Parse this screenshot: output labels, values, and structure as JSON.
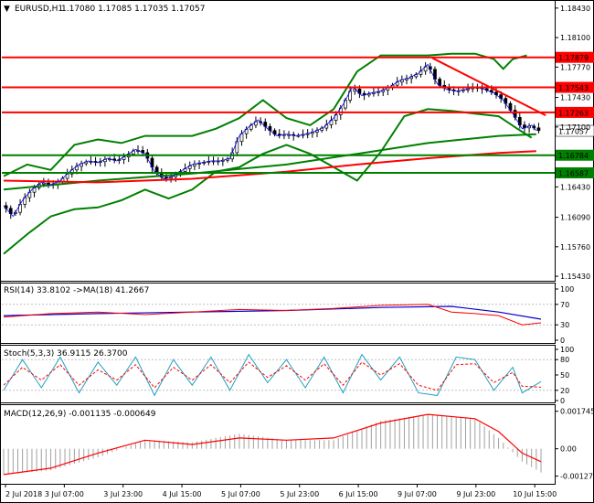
{
  "chart_title": {
    "symbol": "EURUSD,H1",
    "ohlc": "1.17080 1.17085 1.17035 1.17057",
    "marker": "▼"
  },
  "colors": {
    "bull": "#000000",
    "bear": "#000000",
    "level": "#ff0000",
    "support": "#008000",
    "bollinger": "#008000",
    "ma_slow": "#ff0000",
    "ma_mid": "#008000",
    "ma_fast_1": "#0000ff",
    "ma_fast_2": "#ff00ff",
    "rsi": "#ff0000",
    "rsi_ma": "#0000cc",
    "stoch_main": "#20a0c0",
    "stoch_signal": "#ff0000",
    "macd_hist": "#a0a0a0",
    "macd_signal": "#ff0000",
    "current_bg": "#ffffff",
    "grid": "#c0c0c0"
  },
  "chart_data": [
    {
      "type": "line",
      "title": "EURUSD,H1",
      "ylim": [
        1.154,
        1.185
      ],
      "y_ticks": [
        "1.18430",
        "1.18100",
        "1.17770",
        "1.17430",
        "1.17100",
        "1.16430",
        "1.16090",
        "1.15760",
        "1.15430"
      ],
      "x_ticks": [
        "2 Jul 2018",
        "3 Jul 07:00",
        "3 Jul 23:00",
        "4 Jul 15:00",
        "5 Jul 07:00",
        "5 Jul 23:00",
        "6 Jul 15:00",
        "9 Jul 07:00",
        "9 Jul 23:00",
        "10 Jul 15:00"
      ],
      "resistance_levels": [
        {
          "label": "1.17879",
          "value": 1.17879
        },
        {
          "label": "1.17543",
          "value": 1.17543
        },
        {
          "label": "1.17263",
          "value": 1.17263
        }
      ],
      "support_levels": [
        {
          "label": "1.16784",
          "value": 1.16784
        },
        {
          "label": "1.16587",
          "value": 1.16587
        }
      ],
      "current_price": {
        "label": "1.17057",
        "value": 1.17057
      },
      "price_path": [
        [
          0,
          1.1622
        ],
        [
          4,
          1.161
        ],
        [
          8,
          1.1628
        ],
        [
          12,
          1.164
        ],
        [
          16,
          1.1648
        ],
        [
          20,
          1.1645
        ],
        [
          24,
          1.165
        ],
        [
          28,
          1.166
        ],
        [
          32,
          1.1668
        ],
        [
          36,
          1.1672
        ],
        [
          40,
          1.167
        ],
        [
          44,
          1.1675
        ],
        [
          48,
          1.1672
        ],
        [
          52,
          1.1678
        ],
        [
          56,
          1.1685
        ],
        [
          60,
          1.168
        ],
        [
          64,
          1.166
        ],
        [
          68,
          1.1652
        ],
        [
          72,
          1.1655
        ],
        [
          76,
          1.1662
        ],
        [
          80,
          1.1668
        ],
        [
          84,
          1.167
        ],
        [
          88,
          1.1672
        ],
        [
          92,
          1.1672
        ],
        [
          96,
          1.1675
        ],
        [
          100,
          1.17
        ],
        [
          104,
          1.171
        ],
        [
          108,
          1.1718
        ],
        [
          112,
          1.1708
        ],
        [
          116,
          1.17
        ],
        [
          120,
          1.1702
        ],
        [
          124,
          1.17
        ],
        [
          128,
          1.1702
        ],
        [
          132,
          1.1705
        ],
        [
          136,
          1.171
        ],
        [
          140,
          1.172
        ],
        [
          144,
          1.1735
        ],
        [
          148,
          1.1755
        ],
        [
          152,
          1.1745
        ],
        [
          156,
          1.1748
        ],
        [
          160,
          1.175
        ],
        [
          164,
          1.1755
        ],
        [
          168,
          1.1762
        ],
        [
          172,
          1.1765
        ],
        [
          176,
          1.177
        ],
        [
          180,
          1.178
        ],
        [
          184,
          1.1758
        ],
        [
          188,
          1.1752
        ],
        [
          192,
          1.175
        ],
        [
          196,
          1.1752
        ],
        [
          200,
          1.1755
        ],
        [
          204,
          1.1752
        ],
        [
          208,
          1.1748
        ],
        [
          212,
          1.174
        ],
        [
          216,
          1.1725
        ],
        [
          220,
          1.1708
        ],
        [
          224,
          1.1712
        ],
        [
          226,
          1.1706
        ]
      ],
      "bollinger_upper": [
        [
          0,
          1.1655
        ],
        [
          10,
          1.1668
        ],
        [
          20,
          1.1662
        ],
        [
          30,
          1.169
        ],
        [
          40,
          1.1696
        ],
        [
          50,
          1.1692
        ],
        [
          60,
          1.17
        ],
        [
          70,
          1.17
        ],
        [
          80,
          1.17
        ],
        [
          90,
          1.1708
        ],
        [
          100,
          1.172
        ],
        [
          110,
          1.174
        ],
        [
          120,
          1.172
        ],
        [
          130,
          1.1712
        ],
        [
          140,
          1.173
        ],
        [
          150,
          1.1772
        ],
        [
          160,
          1.179
        ],
        [
          170,
          1.179
        ],
        [
          180,
          1.179
        ],
        [
          190,
          1.1792
        ],
        [
          200,
          1.1792
        ],
        [
          208,
          1.1786
        ],
        [
          212,
          1.1775
        ],
        [
          216,
          1.1786
        ],
        [
          222,
          1.179
        ]
      ],
      "bollinger_lower": [
        [
          0,
          1.1568
        ],
        [
          10,
          1.159
        ],
        [
          20,
          1.161
        ],
        [
          30,
          1.1618
        ],
        [
          40,
          1.162
        ],
        [
          50,
          1.1628
        ],
        [
          60,
          1.164
        ],
        [
          70,
          1.163
        ],
        [
          80,
          1.164
        ],
        [
          90,
          1.166
        ],
        [
          100,
          1.1665
        ],
        [
          110,
          1.168
        ],
        [
          120,
          1.169
        ],
        [
          130,
          1.168
        ],
        [
          140,
          1.1665
        ],
        [
          150,
          1.165
        ],
        [
          160,
          1.1682
        ],
        [
          170,
          1.1722
        ],
        [
          180,
          1.173
        ],
        [
          190,
          1.1728
        ],
        [
          200,
          1.1725
        ],
        [
          210,
          1.1722
        ],
        [
          218,
          1.1708
        ],
        [
          224,
          1.1698
        ]
      ],
      "ma_slow": [
        [
          0,
          1.165
        ],
        [
          40,
          1.1648
        ],
        [
          80,
          1.1652
        ],
        [
          120,
          1.166
        ],
        [
          150,
          1.1668
        ],
        [
          180,
          1.1675
        ],
        [
          210,
          1.1681
        ],
        [
          226,
          1.1683
        ]
      ],
      "ma_mid": [
        [
          0,
          1.164
        ],
        [
          40,
          1.165
        ],
        [
          80,
          1.1658
        ],
        [
          120,
          1.1668
        ],
        [
          150,
          1.168
        ],
        [
          180,
          1.1692
        ],
        [
          210,
          1.17
        ],
        [
          226,
          1.1702
        ]
      ],
      "trendline": [
        [
          182,
          1.1787
        ],
        [
          230,
          1.1723
        ]
      ]
    },
    {
      "type": "line",
      "title": "RSI(14) 33.8102 ->MA(18) 41.2667",
      "ylim": [
        0,
        100
      ],
      "y_ticks": [
        "100",
        "70",
        "30",
        "0"
      ],
      "rsi": [
        [
          0,
          45
        ],
        [
          20,
          52
        ],
        [
          40,
          55
        ],
        [
          60,
          50
        ],
        [
          80,
          55
        ],
        [
          100,
          60
        ],
        [
          120,
          58
        ],
        [
          140,
          62
        ],
        [
          160,
          68
        ],
        [
          180,
          70
        ],
        [
          190,
          55
        ],
        [
          200,
          52
        ],
        [
          210,
          48
        ],
        [
          220,
          30
        ],
        [
          228,
          34
        ]
      ],
      "rsi_ma": [
        [
          0,
          48
        ],
        [
          40,
          52
        ],
        [
          80,
          55
        ],
        [
          120,
          58
        ],
        [
          160,
          64
        ],
        [
          190,
          66
        ],
        [
          210,
          55
        ],
        [
          228,
          41
        ]
      ]
    },
    {
      "type": "line",
      "title": "Stoch(5,3,3) 36.9115 26.3700",
      "ylim": [
        0,
        100
      ],
      "y_ticks": [
        "100",
        "80",
        "50",
        "20",
        "0"
      ],
      "main": [
        [
          0,
          20
        ],
        [
          8,
          80
        ],
        [
          16,
          25
        ],
        [
          24,
          85
        ],
        [
          32,
          15
        ],
        [
          40,
          75
        ],
        [
          48,
          30
        ],
        [
          56,
          85
        ],
        [
          64,
          10
        ],
        [
          72,
          80
        ],
        [
          80,
          30
        ],
        [
          88,
          85
        ],
        [
          96,
          20
        ],
        [
          104,
          90
        ],
        [
          112,
          35
        ],
        [
          120,
          80
        ],
        [
          128,
          25
        ],
        [
          136,
          85
        ],
        [
          144,
          15
        ],
        [
          152,
          90
        ],
        [
          160,
          40
        ],
        [
          168,
          85
        ],
        [
          176,
          15
        ],
        [
          184,
          10
        ],
        [
          192,
          85
        ],
        [
          200,
          80
        ],
        [
          208,
          20
        ],
        [
          216,
          65
        ],
        [
          220,
          15
        ],
        [
          228,
          37
        ]
      ],
      "signal": [
        [
          0,
          30
        ],
        [
          8,
          65
        ],
        [
          16,
          40
        ],
        [
          24,
          70
        ],
        [
          32,
          30
        ],
        [
          40,
          60
        ],
        [
          48,
          40
        ],
        [
          56,
          70
        ],
        [
          64,
          25
        ],
        [
          72,
          65
        ],
        [
          80,
          40
        ],
        [
          88,
          70
        ],
        [
          96,
          35
        ],
        [
          104,
          75
        ],
        [
          112,
          45
        ],
        [
          120,
          68
        ],
        [
          128,
          40
        ],
        [
          136,
          72
        ],
        [
          144,
          30
        ],
        [
          152,
          75
        ],
        [
          160,
          50
        ],
        [
          168,
          72
        ],
        [
          176,
          30
        ],
        [
          184,
          20
        ],
        [
          192,
          70
        ],
        [
          200,
          72
        ],
        [
          208,
          35
        ],
        [
          216,
          55
        ],
        [
          220,
          28
        ],
        [
          228,
          26
        ]
      ]
    },
    {
      "type": "bar",
      "title": "MACD(12,26,9) -0.001135 -0.000649",
      "ylim": [
        -0.0015,
        0.0019
      ],
      "y_ticks": [
        "0.001745",
        "0.00",
        "-0.001272"
      ],
      "histogram": [
        [
          0,
          -0.0012
        ],
        [
          20,
          -0.001
        ],
        [
          40,
          -0.0004
        ],
        [
          60,
          0.0004
        ],
        [
          80,
          0.0003
        ],
        [
          100,
          0.0007
        ],
        [
          120,
          0.0004
        ],
        [
          140,
          0.0004
        ],
        [
          160,
          0.0013
        ],
        [
          180,
          0.0016
        ],
        [
          200,
          0.0014
        ],
        [
          210,
          0.0005
        ],
        [
          220,
          -0.0006
        ],
        [
          228,
          -0.0011
        ]
      ],
      "signal": [
        [
          0,
          -0.0012
        ],
        [
          20,
          -0.0009
        ],
        [
          40,
          -0.0002
        ],
        [
          60,
          0.0004
        ],
        [
          80,
          0.0002
        ],
        [
          100,
          0.0005
        ],
        [
          120,
          0.0004
        ],
        [
          140,
          0.0005
        ],
        [
          160,
          0.0012
        ],
        [
          180,
          0.0016
        ],
        [
          200,
          0.0014
        ],
        [
          210,
          0.0008
        ],
        [
          220,
          -0.0002
        ],
        [
          228,
          -0.0006
        ]
      ]
    }
  ]
}
